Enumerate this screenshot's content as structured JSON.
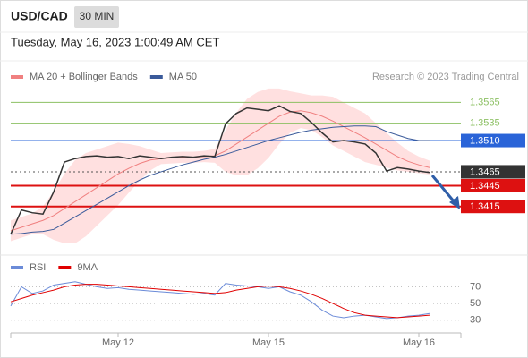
{
  "header": {
    "symbol": "USD/CAD",
    "interval": "30 MIN",
    "timestamp": "Tuesday, May 16, 2023 1:00:49 AM CET"
  },
  "chart_data": [
    {
      "type": "line",
      "credit": "Research © 2023 Trading Central",
      "color": "#333333",
      "values": [
        1.3375,
        1.341,
        1.3406,
        1.3404,
        1.3436,
        1.3479,
        1.3484,
        1.3487,
        1.3488,
        1.3486,
        1.3487,
        1.3484,
        1.3488,
        1.3486,
        1.3484,
        1.3486,
        1.3487,
        1.3486,
        1.3488,
        1.3487,
        1.3534,
        1.3549,
        1.3557,
        1.3555,
        1.3553,
        1.356,
        1.3552,
        1.3549,
        1.3536,
        1.3521,
        1.3508,
        1.351,
        1.3508,
        1.3505,
        1.3492,
        1.3466,
        1.3471,
        1.3469,
        1.3466,
        1.3464
      ],
      "series": [
        {
          "name": "MA 20 + Bollinger Bands",
          "color": "#f08080",
          "band_color": "#ffd6d6",
          "values": [
            1.338,
            1.3385,
            1.339,
            1.3395,
            1.3402,
            1.3412,
            1.3422,
            1.3432,
            1.3442,
            1.3452,
            1.3462,
            1.347,
            1.3477,
            1.3482,
            1.3484,
            1.3485,
            1.3486,
            1.3486,
            1.3487,
            1.3488,
            1.3495,
            1.3505,
            1.3515,
            1.3525,
            1.3535,
            1.3545,
            1.3551,
            1.3553,
            1.355,
            1.3545,
            1.3538,
            1.353,
            1.3522,
            1.3514,
            1.3505,
            1.3496,
            1.3487,
            1.348,
            1.3475,
            1.3471
          ],
          "band_upper": [
            1.3395,
            1.34,
            1.3405,
            1.3415,
            1.3437,
            1.3462,
            1.3482,
            1.3492,
            1.3497,
            1.3502,
            1.3507,
            1.3505,
            1.3502,
            1.3497,
            1.3492,
            1.3493,
            1.3494,
            1.3494,
            1.3495,
            1.3498,
            1.3525,
            1.355,
            1.357,
            1.358,
            1.3585,
            1.3585,
            1.3581,
            1.3578,
            1.3575,
            1.3575,
            1.3573,
            1.3565,
            1.3557,
            1.3549,
            1.3535,
            1.3521,
            1.3507,
            1.3495,
            1.3487,
            1.3481
          ],
          "band_lower": [
            1.3365,
            1.337,
            1.3375,
            1.3375,
            1.3367,
            1.3362,
            1.3362,
            1.3372,
            1.3387,
            1.3402,
            1.3417,
            1.3435,
            1.3452,
            1.3467,
            1.3476,
            1.3477,
            1.3478,
            1.3478,
            1.3479,
            1.3478,
            1.3465,
            1.346,
            1.346,
            1.347,
            1.3485,
            1.3505,
            1.3521,
            1.3528,
            1.3525,
            1.3515,
            1.3503,
            1.3495,
            1.3487,
            1.3479,
            1.3475,
            1.3471,
            1.3467,
            1.3465,
            1.3463,
            1.3461
          ]
        },
        {
          "name": "MA 50",
          "color": "#3a5a9a",
          "values": [
            1.3375,
            1.3376,
            1.3378,
            1.3379,
            1.3382,
            1.3391,
            1.34,
            1.3409,
            1.3418,
            1.3427,
            1.3436,
            1.3445,
            1.3453,
            1.346,
            1.3465,
            1.347,
            1.3475,
            1.3479,
            1.3483,
            1.3486,
            1.349,
            1.3495,
            1.35,
            1.3505,
            1.351,
            1.3514,
            1.3518,
            1.3522,
            1.3525,
            1.3527,
            1.3529,
            1.353,
            1.3531,
            1.3531,
            1.353,
            1.3523,
            1.3518,
            1.3513,
            1.351,
            1.351
          ]
        }
      ],
      "levels": [
        {
          "value": 1.3565,
          "label": "1.3565",
          "color": "#8cc063",
          "boxed": false,
          "dashed": false
        },
        {
          "value": 1.3535,
          "label": "1.3535",
          "color": "#8cc063",
          "boxed": false,
          "dashed": false
        },
        {
          "value": 1.351,
          "label": "1.3510",
          "color": "#2a64d8",
          "boxed": true,
          "dashed": false
        },
        {
          "value": 1.3465,
          "label": "1.3465",
          "color": "#333333",
          "boxed": true,
          "dashed": true
        },
        {
          "value": 1.3445,
          "label": "1.3445",
          "color": "#dd1111",
          "boxed": true,
          "dashed": false
        },
        {
          "value": 1.3415,
          "label": "1.3415",
          "color": "#dd1111",
          "boxed": true,
          "dashed": false
        }
      ],
      "ylim": [
        1.3345,
        1.359
      ]
    },
    {
      "type": "line",
      "categories": [
        null,
        null,
        null,
        null,
        null,
        null,
        null,
        null,
        null,
        null,
        "May 12",
        null,
        null,
        null,
        null,
        null,
        null,
        null,
        null,
        null,
        null,
        null,
        null,
        null,
        "May 15",
        null,
        null,
        null,
        null,
        null,
        null,
        null,
        null,
        null,
        null,
        null,
        null,
        null,
        "May 16",
        null
      ],
      "series": [
        {
          "name": "RSI",
          "color": "#6b8bd8",
          "values": [
            47,
            70,
            62,
            65,
            72,
            74,
            76,
            73,
            70,
            68,
            69,
            67,
            66,
            65,
            64,
            63,
            62,
            61,
            62,
            60,
            74,
            72,
            71,
            70,
            68,
            70,
            64,
            60,
            52,
            42,
            35,
            33,
            35,
            36,
            34,
            32,
            33,
            35,
            36,
            38
          ]
        },
        {
          "name": "9MA",
          "color": "#e00000",
          "values": [
            52,
            56,
            60,
            63,
            66,
            70,
            72,
            73,
            73,
            72,
            71,
            70,
            69,
            68,
            67,
            66,
            65,
            64,
            63,
            62,
            63,
            66,
            68,
            70,
            71,
            70,
            68,
            65,
            61,
            56,
            50,
            44,
            39,
            36,
            35,
            34,
            33,
            34,
            35,
            36
          ]
        }
      ],
      "ylim": [
        19,
        94
      ],
      "yticks": [
        30,
        50,
        70
      ],
      "grid": true
    }
  ]
}
